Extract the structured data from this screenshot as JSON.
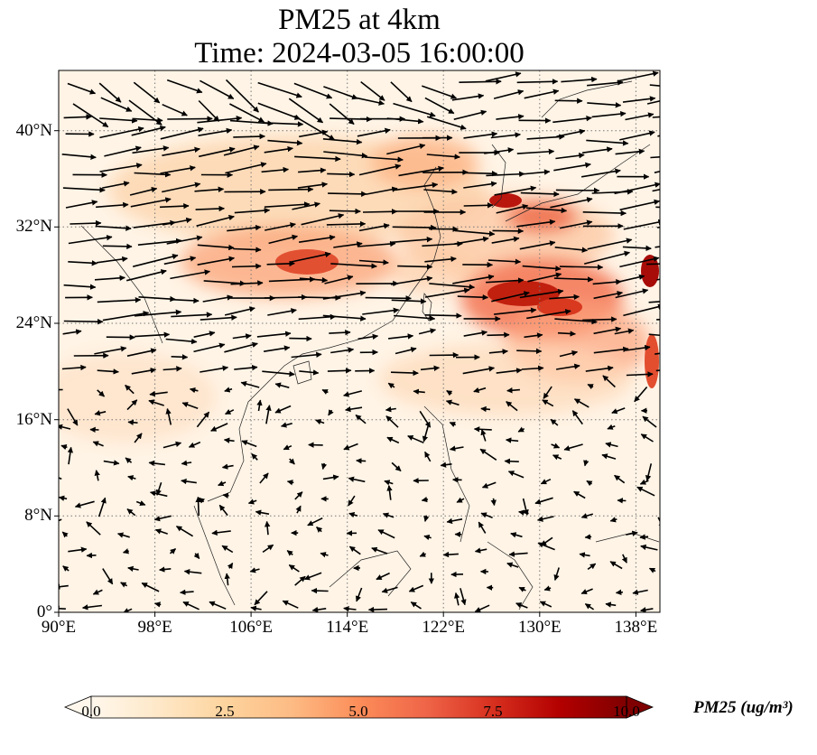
{
  "title": {
    "line1": "PM25 at 4km",
    "line2": "Time: 2024-03-05 16:00:00"
  },
  "axes": {
    "x_ticks": [
      "90°E",
      "98°E",
      "106°E",
      "114°E",
      "122°E",
      "130°E",
      "138°E"
    ],
    "y_ticks": [
      "40°N",
      "32°N",
      "24°N",
      "16°N",
      "8°N",
      "0°"
    ],
    "lon_range": [
      90,
      140
    ],
    "lat_range": [
      0,
      45
    ],
    "gridlines": "dotted"
  },
  "colorbar": {
    "label": "PM25 (ug/m³)",
    "ticks": [
      "0.0",
      "2.5",
      "5.0",
      "7.5",
      "10.0"
    ],
    "range": [
      0,
      10
    ],
    "extend": "both",
    "colormap": "OrRd",
    "colors": [
      "#fff7ec",
      "#fee8c8",
      "#fdd49e",
      "#fdbb84",
      "#fc8d59",
      "#ef6548",
      "#d7301f",
      "#b30000",
      "#7f0000"
    ]
  },
  "map": {
    "variable": "PM25",
    "level": "4km",
    "vectors": "wind"
  }
}
